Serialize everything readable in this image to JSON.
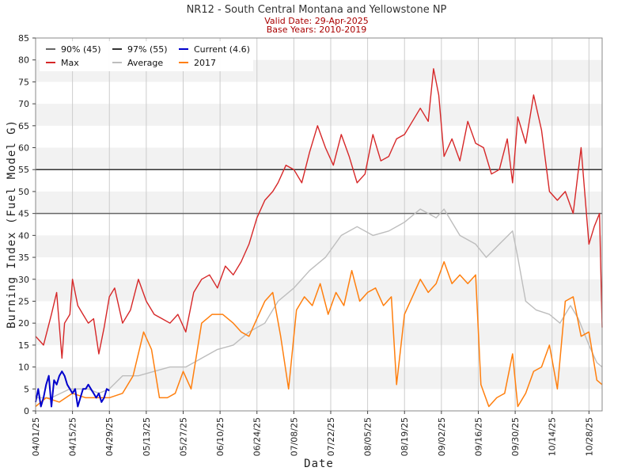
{
  "title": "NR12 - South Central Montana and Yellowstone NP",
  "valid_date": "Valid Date: 29-Apr-2025",
  "base_years": "Base Years: 2010-2019",
  "colors": {
    "max": "#d62728",
    "average": "#bdbdbd",
    "current": "#0000cc",
    "y2017": "#ff7f0e",
    "p90": "#666666",
    "p97": "#333333",
    "band": "#f2f2f2",
    "grid": "#cccccc"
  },
  "chart_data": {
    "type": "line",
    "title": "NR12 - South Central Montana and Yellowstone NP",
    "xlabel": "Date",
    "ylabel": "Burning Index (Fuel Model G)",
    "ylim": [
      0,
      85
    ],
    "yticks": [
      0,
      5,
      10,
      15,
      20,
      25,
      30,
      35,
      40,
      45,
      50,
      55,
      60,
      65,
      70,
      75,
      80,
      85
    ],
    "xlim": [
      "04/01/25",
      "11/02/25"
    ],
    "xticks": [
      "04/01/25",
      "04/15/25",
      "04/29/25",
      "05/13/25",
      "05/27/25",
      "06/10/25",
      "06/24/25",
      "07/08/25",
      "07/22/25",
      "08/05/25",
      "08/19/25",
      "09/02/25",
      "09/16/25",
      "09/30/25",
      "10/14/25",
      "10/28/25"
    ],
    "grid": "vertical at x ticks, alternating horizontal bands",
    "legend_position": "top-left",
    "legend": [
      "90% (45)",
      "97% (55)",
      "Current (4.6)",
      "Max",
      "Average",
      "2017"
    ],
    "thresholds": [
      {
        "name": "90% (45)",
        "value": 45
      },
      {
        "name": "97% (55)",
        "value": 55
      }
    ],
    "series": [
      {
        "name": "Max",
        "x": [
          "04/01",
          "04/04",
          "04/07",
          "04/09",
          "04/11",
          "04/12",
          "04/14",
          "04/15",
          "04/17",
          "04/19",
          "04/21",
          "04/23",
          "04/25",
          "04/27",
          "04/29",
          "05/01",
          "05/04",
          "05/07",
          "05/10",
          "05/13",
          "05/16",
          "05/19",
          "05/22",
          "05/25",
          "05/28",
          "05/31",
          "06/03",
          "06/06",
          "06/09",
          "06/12",
          "06/15",
          "06/18",
          "06/21",
          "06/24",
          "06/27",
          "06/30",
          "07/02",
          "07/05",
          "07/08",
          "07/11",
          "07/14",
          "07/17",
          "07/20",
          "07/23",
          "07/26",
          "07/29",
          "08/01",
          "08/04",
          "08/07",
          "08/10",
          "08/13",
          "08/16",
          "08/19",
          "08/22",
          "08/25",
          "08/28",
          "08/30",
          "09/01",
          "09/03",
          "09/06",
          "09/09",
          "09/12",
          "09/15",
          "09/18",
          "09/21",
          "09/24",
          "09/27",
          "09/29",
          "10/01",
          "10/04",
          "10/07",
          "10/10",
          "10/13",
          "10/16",
          "10/19",
          "10/22",
          "10/25",
          "10/28",
          "10/30",
          "11/01",
          "11/02"
        ],
        "values": [
          17,
          15,
          22,
          27,
          12,
          20,
          22,
          30,
          24,
          22,
          20,
          21,
          13,
          19,
          26,
          28,
          20,
          23,
          30,
          25,
          22,
          21,
          20,
          22,
          18,
          27,
          30,
          31,
          28,
          33,
          31,
          34,
          38,
          44,
          48,
          50,
          52,
          56,
          55,
          52,
          59,
          65,
          60,
          56,
          63,
          58,
          52,
          54,
          63,
          57,
          58,
          62,
          63,
          66,
          69,
          66,
          78,
          72,
          58,
          62,
          57,
          66,
          61,
          60,
          54,
          55,
          62,
          52,
          67,
          61,
          72,
          64,
          50,
          48,
          50,
          45,
          60,
          38,
          42,
          45,
          19
        ]
      },
      {
        "name": "Average",
        "x": [
          "04/01",
          "04/07",
          "04/14",
          "04/21",
          "04/25",
          "04/29",
          "05/04",
          "05/10",
          "05/16",
          "05/22",
          "05/28",
          "06/03",
          "06/09",
          "06/15",
          "06/21",
          "06/27",
          "07/02",
          "07/08",
          "07/14",
          "07/20",
          "07/26",
          "08/01",
          "08/07",
          "08/13",
          "08/19",
          "08/25",
          "08/31",
          "09/03",
          "09/09",
          "09/15",
          "09/19",
          "09/24",
          "09/29",
          "10/01",
          "10/04",
          "10/08",
          "10/13",
          "10/17",
          "10/21",
          "10/24",
          "10/28",
          "10/31",
          "11/02"
        ],
        "values": [
          3,
          3,
          5,
          5,
          4,
          5,
          8,
          8,
          9,
          10,
          10,
          12,
          14,
          15,
          18,
          20,
          25,
          28,
          32,
          35,
          40,
          42,
          40,
          41,
          43,
          46,
          44,
          46,
          40,
          38,
          35,
          38,
          41,
          35,
          25,
          23,
          22,
          20,
          24,
          21,
          15,
          11,
          10
        ]
      },
      {
        "name": "2017",
        "x": [
          "04/01",
          "04/05",
          "04/10",
          "04/15",
          "04/20",
          "04/25",
          "04/29",
          "05/04",
          "05/08",
          "05/12",
          "05/15",
          "05/18",
          "05/21",
          "05/24",
          "05/27",
          "05/30",
          "06/03",
          "06/07",
          "06/11",
          "06/15",
          "06/18",
          "06/21",
          "06/24",
          "06/27",
          "06/30",
          "07/03",
          "07/06",
          "07/09",
          "07/12",
          "07/15",
          "07/18",
          "07/21",
          "07/24",
          "07/27",
          "07/30",
          "08/02",
          "08/05",
          "08/08",
          "08/11",
          "08/14",
          "08/16",
          "08/19",
          "08/22",
          "08/25",
          "08/28",
          "08/31",
          "09/03",
          "09/06",
          "09/09",
          "09/12",
          "09/15",
          "09/17",
          "09/20",
          "09/23",
          "09/26",
          "09/29",
          "10/01",
          "10/04",
          "10/07",
          "10/10",
          "10/13",
          "10/16",
          "10/19",
          "10/22",
          "10/25",
          "10/28",
          "10/31",
          "11/02"
        ],
        "values": [
          1,
          3,
          2,
          4,
          3,
          3,
          3,
          4,
          8,
          18,
          14,
          3,
          3,
          4,
          9,
          5,
          20,
          22,
          22,
          20,
          18,
          17,
          21,
          25,
          27,
          17,
          5,
          23,
          26,
          24,
          29,
          22,
          27,
          24,
          32,
          25,
          27,
          28,
          24,
          26,
          6,
          22,
          26,
          30,
          27,
          29,
          34,
          29,
          31,
          29,
          31,
          6,
          1,
          3,
          4,
          13,
          1,
          4,
          9,
          10,
          15,
          5,
          25,
          26,
          17,
          18,
          7,
          6
        ]
      },
      {
        "name": "Current (4.6)",
        "x": [
          "04/01",
          "04/02",
          "04/03",
          "04/04",
          "04/05",
          "04/06",
          "04/07",
          "04/08",
          "04/09",
          "04/10",
          "04/11",
          "04/12",
          "04/13",
          "04/14",
          "04/15",
          "04/16",
          "04/17",
          "04/18",
          "04/19",
          "04/20",
          "04/21",
          "04/22",
          "04/23",
          "04/24",
          "04/25",
          "04/26",
          "04/27",
          "04/28",
          "04/29"
        ],
        "values": [
          2,
          5,
          1,
          3,
          6,
          8,
          1,
          7,
          6,
          8,
          9,
          8,
          6,
          5,
          4,
          5,
          1,
          3,
          5,
          5,
          6,
          5,
          4,
          3,
          4,
          2,
          3,
          5,
          4.6
        ]
      }
    ]
  }
}
